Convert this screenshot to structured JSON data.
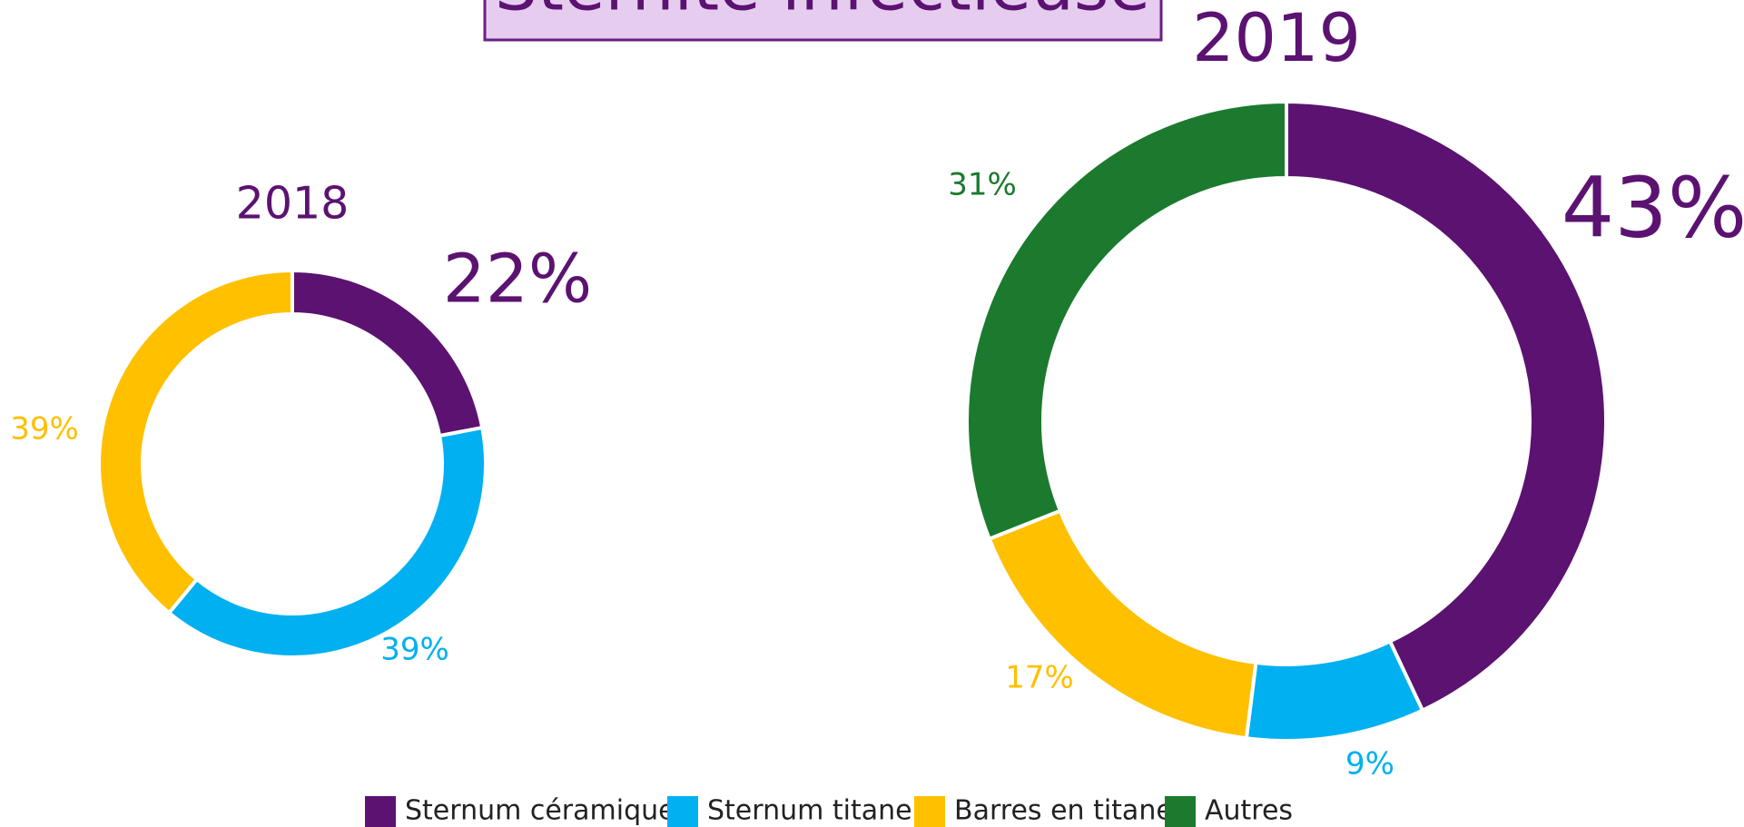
{
  "chart_data": [
    {
      "type": "pie",
      "title": "Sternite infectieuse",
      "subtitle": "2018",
      "categories": [
        "Sternum céramique",
        "Sternum titane",
        "Barres en titane"
      ],
      "values": [
        22,
        39,
        39
      ],
      "value_labels": [
        "22%",
        "39%",
        "39%"
      ],
      "colors": [
        "#5b1271",
        "#00b0f0",
        "#ffc000"
      ],
      "donut": true
    },
    {
      "type": "pie",
      "subtitle": "2019",
      "categories": [
        "Sternum céramique",
        "Sternum titane",
        "Barres en titane",
        "Autres"
      ],
      "values": [
        43,
        9,
        17,
        31
      ],
      "value_labels": [
        "43%",
        "9%",
        "17%",
        "31%"
      ],
      "colors": [
        "#5b1271",
        "#00b0f0",
        "#ffc000",
        "#1b7a2e"
      ],
      "donut": true,
      "legend": "bottom"
    }
  ]
}
